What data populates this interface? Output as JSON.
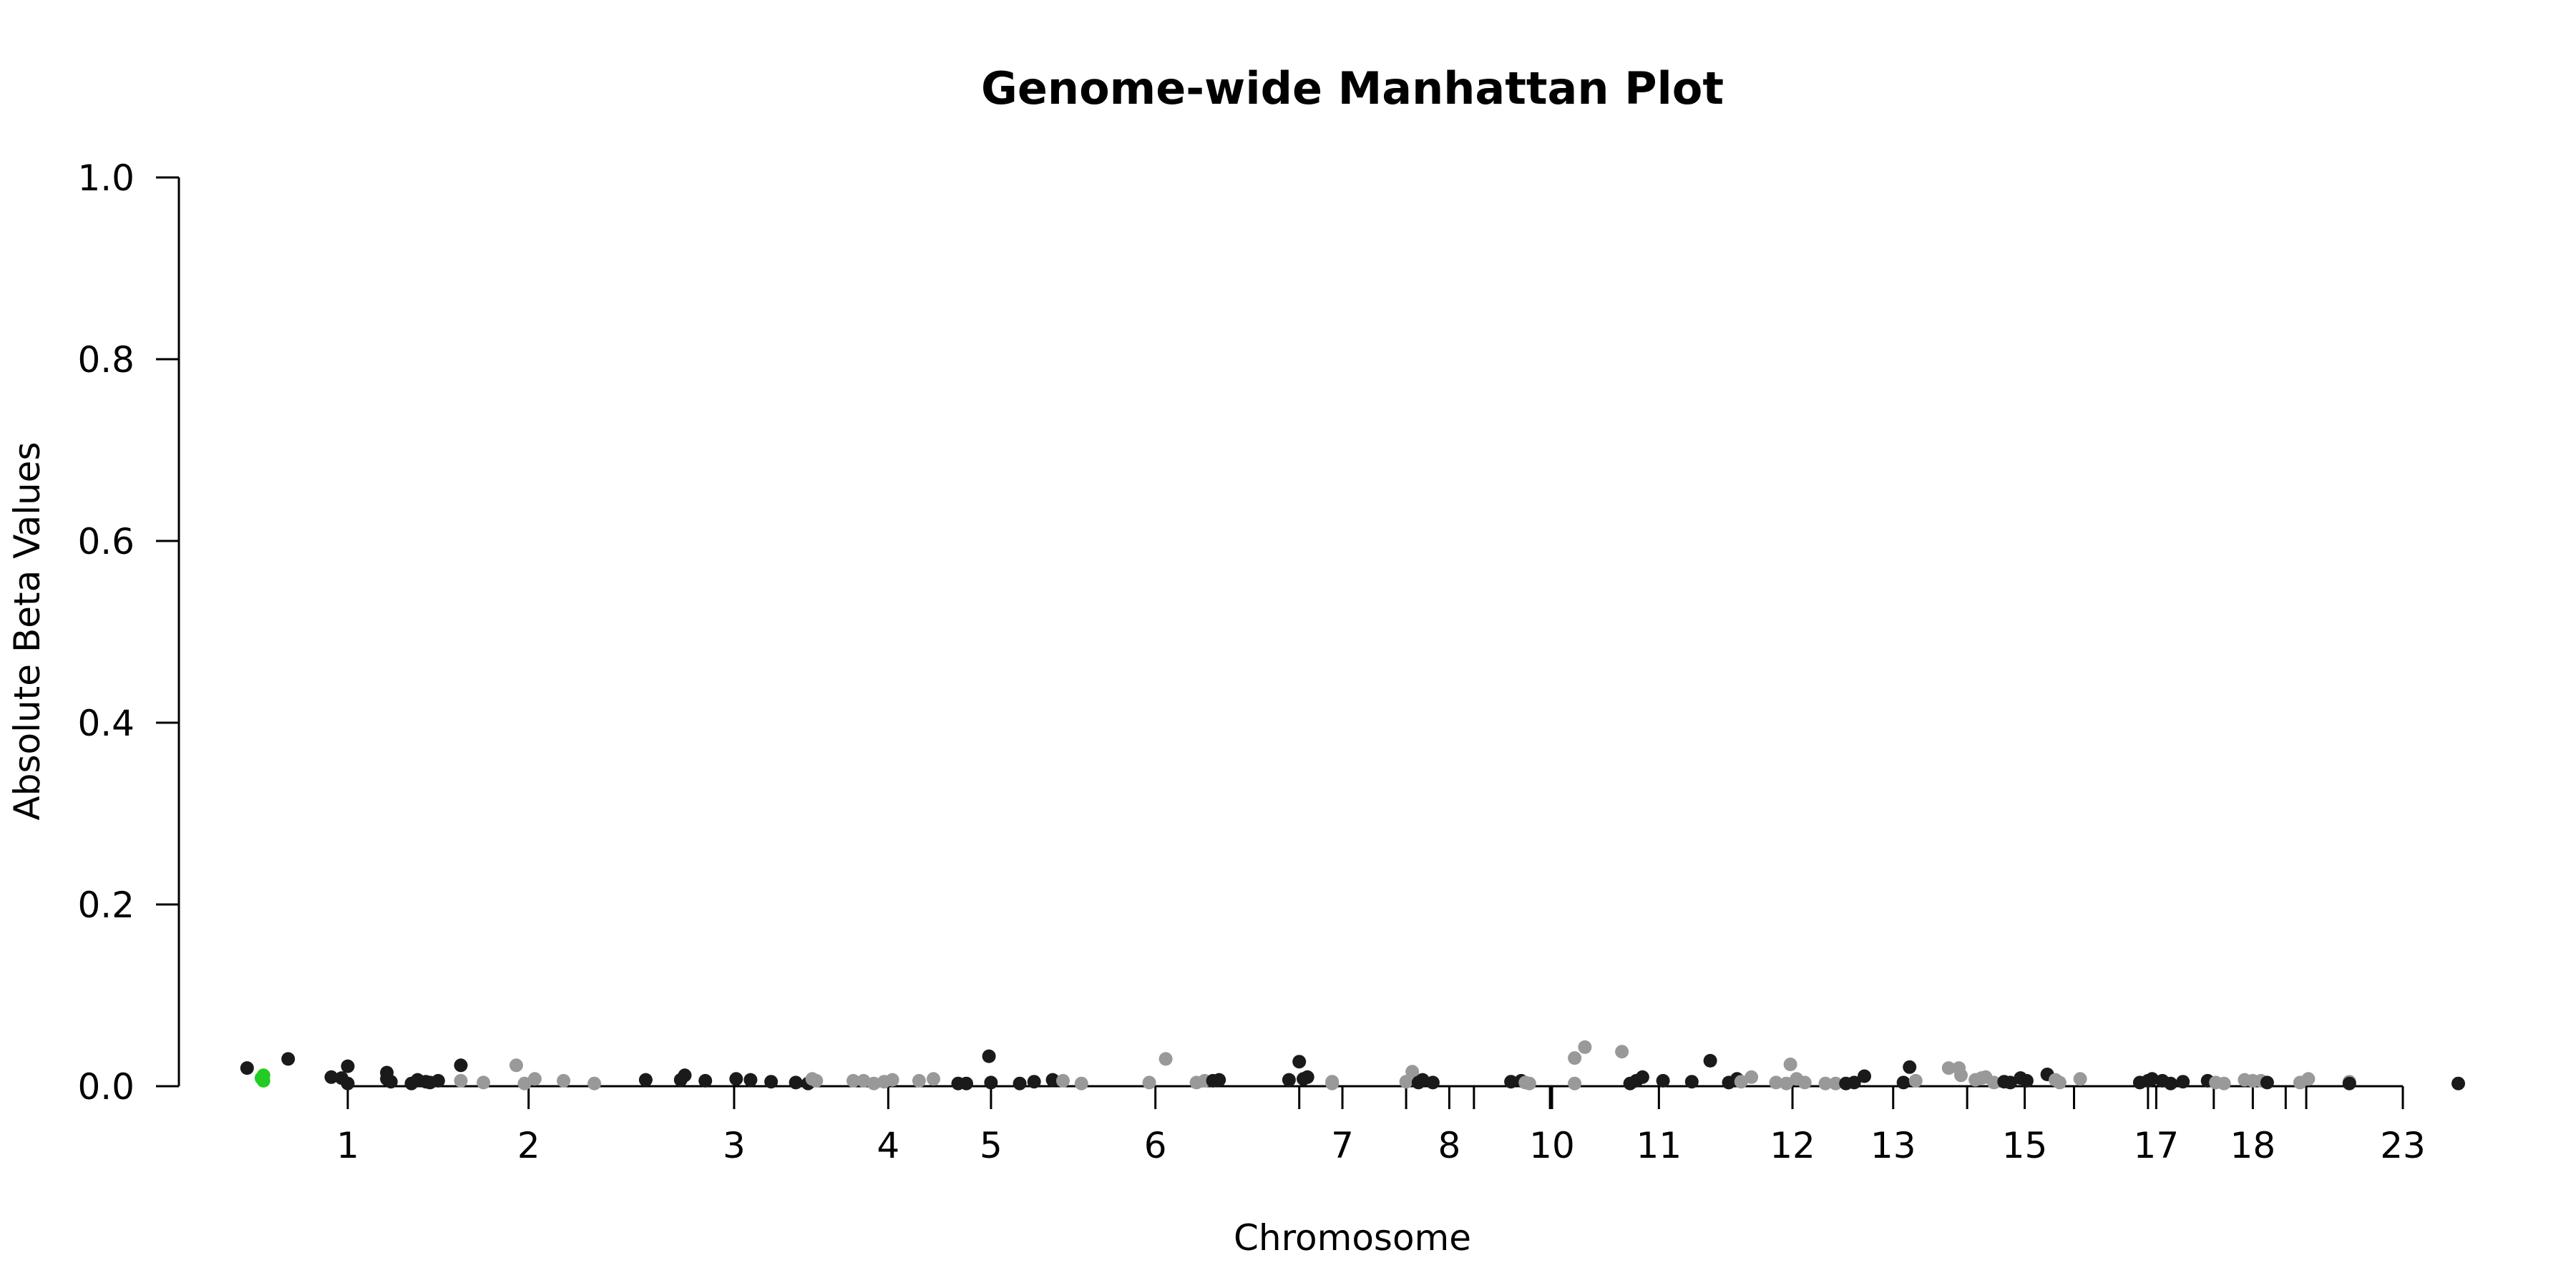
{
  "chart_data": {
    "type": "scatter",
    "title": "Genome-wide Manhattan Plot",
    "xlabel": "Chromosome",
    "ylabel": "Absolute Beta Values",
    "ylim": [
      0,
      1
    ],
    "yticks": [
      {
        "value": 0.0,
        "label": "0.0"
      },
      {
        "value": 0.2,
        "label": "0.2"
      },
      {
        "value": 0.4,
        "label": "0.4"
      },
      {
        "value": 0.6,
        "label": "0.6"
      },
      {
        "value": 0.8,
        "label": "0.8"
      },
      {
        "value": 1.0,
        "label": "1.0"
      }
    ],
    "xlim": [
      -0.06,
      1.0
    ],
    "xticks": [
      {
        "pos": 0.0,
        "label": "1"
      },
      {
        "pos": 0.088,
        "label": "2"
      },
      {
        "pos": 0.188,
        "label": "3"
      },
      {
        "pos": 0.263,
        "label": "4"
      },
      {
        "pos": 0.313,
        "label": "5"
      },
      {
        "pos": 0.393,
        "label": "6"
      },
      {
        "pos": 0.463,
        "label": ""
      },
      {
        "pos": 0.484,
        "label": "7"
      },
      {
        "pos": 0.515,
        "label": ""
      },
      {
        "pos": 0.536,
        "label": "8"
      },
      {
        "pos": 0.548,
        "label": ""
      },
      {
        "pos": 0.585,
        "label": ""
      },
      {
        "pos": 0.586,
        "label": "10"
      },
      {
        "pos": 0.638,
        "label": "11"
      },
      {
        "pos": 0.703,
        "label": "12"
      },
      {
        "pos": 0.752,
        "label": "13"
      },
      {
        "pos": 0.788,
        "label": ""
      },
      {
        "pos": 0.816,
        "label": "15"
      },
      {
        "pos": 0.84,
        "label": ""
      },
      {
        "pos": 0.876,
        "label": ""
      },
      {
        "pos": 0.88,
        "label": "17"
      },
      {
        "pos": 0.908,
        "label": ""
      },
      {
        "pos": 0.927,
        "label": "18"
      },
      {
        "pos": 0.943,
        "label": ""
      },
      {
        "pos": 0.953,
        "label": ""
      },
      {
        "pos": 1.0,
        "label": "23"
      }
    ],
    "grid": false,
    "colors": {
      "dark": "#1a1a1a",
      "light": "#999999",
      "highlight": "#22cc22"
    },
    "points": [
      {
        "x": -0.049,
        "y": 0.02,
        "c": "dark"
      },
      {
        "x": -0.029,
        "y": 0.03,
        "c": "dark"
      },
      {
        "x": -0.041,
        "y": 0.012,
        "c": "highlight"
      },
      {
        "x": -0.041,
        "y": 0.006,
        "c": "highlight"
      },
      {
        "x": -0.042,
        "y": 0.009,
        "c": "highlight"
      },
      {
        "x": -0.008,
        "y": 0.01,
        "c": "dark"
      },
      {
        "x": -0.003,
        "y": 0.009,
        "c": "dark"
      },
      {
        "x": 0.0,
        "y": 0.003,
        "c": "dark"
      },
      {
        "x": 0.0,
        "y": 0.022,
        "c": "dark"
      },
      {
        "x": 0.019,
        "y": 0.015,
        "c": "dark"
      },
      {
        "x": 0.019,
        "y": 0.008,
        "c": "dark"
      },
      {
        "x": 0.021,
        "y": 0.005,
        "c": "dark"
      },
      {
        "x": 0.031,
        "y": 0.003,
        "c": "dark"
      },
      {
        "x": 0.034,
        "y": 0.007,
        "c": "dark"
      },
      {
        "x": 0.038,
        "y": 0.005,
        "c": "dark"
      },
      {
        "x": 0.04,
        "y": 0.004,
        "c": "dark"
      },
      {
        "x": 0.044,
        "y": 0.006,
        "c": "dark"
      },
      {
        "x": 0.055,
        "y": 0.023,
        "c": "dark"
      },
      {
        "x": 0.055,
        "y": 0.006,
        "c": "light"
      },
      {
        "x": 0.066,
        "y": 0.004,
        "c": "light"
      },
      {
        "x": 0.082,
        "y": 0.023,
        "c": "light"
      },
      {
        "x": 0.086,
        "y": 0.003,
        "c": "light"
      },
      {
        "x": 0.091,
        "y": 0.008,
        "c": "light"
      },
      {
        "x": 0.105,
        "y": 0.006,
        "c": "light"
      },
      {
        "x": 0.12,
        "y": 0.003,
        "c": "light"
      },
      {
        "x": 0.145,
        "y": 0.007,
        "c": "dark"
      },
      {
        "x": 0.162,
        "y": 0.007,
        "c": "dark"
      },
      {
        "x": 0.164,
        "y": 0.012,
        "c": "dark"
      },
      {
        "x": 0.174,
        "y": 0.006,
        "c": "dark"
      },
      {
        "x": 0.189,
        "y": 0.008,
        "c": "dark"
      },
      {
        "x": 0.196,
        "y": 0.007,
        "c": "dark"
      },
      {
        "x": 0.206,
        "y": 0.005,
        "c": "dark"
      },
      {
        "x": 0.218,
        "y": 0.004,
        "c": "dark"
      },
      {
        "x": 0.224,
        "y": 0.003,
        "c": "dark"
      },
      {
        "x": 0.226,
        "y": 0.008,
        "c": "light"
      },
      {
        "x": 0.228,
        "y": 0.006,
        "c": "light"
      },
      {
        "x": 0.246,
        "y": 0.006,
        "c": "light"
      },
      {
        "x": 0.251,
        "y": 0.006,
        "c": "light"
      },
      {
        "x": 0.256,
        "y": 0.003,
        "c": "light"
      },
      {
        "x": 0.261,
        "y": 0.005,
        "c": "light"
      },
      {
        "x": 0.265,
        "y": 0.007,
        "c": "light"
      },
      {
        "x": 0.278,
        "y": 0.006,
        "c": "light"
      },
      {
        "x": 0.285,
        "y": 0.008,
        "c": "light"
      },
      {
        "x": 0.297,
        "y": 0.003,
        "c": "dark"
      },
      {
        "x": 0.301,
        "y": 0.003,
        "c": "dark"
      },
      {
        "x": 0.312,
        "y": 0.033,
        "c": "dark"
      },
      {
        "x": 0.313,
        "y": 0.004,
        "c": "dark"
      },
      {
        "x": 0.327,
        "y": 0.003,
        "c": "dark"
      },
      {
        "x": 0.334,
        "y": 0.005,
        "c": "dark"
      },
      {
        "x": 0.343,
        "y": 0.007,
        "c": "dark"
      },
      {
        "x": 0.348,
        "y": 0.006,
        "c": "light"
      },
      {
        "x": 0.357,
        "y": 0.003,
        "c": "light"
      },
      {
        "x": 0.39,
        "y": 0.004,
        "c": "light"
      },
      {
        "x": 0.398,
        "y": 0.03,
        "c": "light"
      },
      {
        "x": 0.413,
        "y": 0.004,
        "c": "light"
      },
      {
        "x": 0.417,
        "y": 0.006,
        "c": "light"
      },
      {
        "x": 0.421,
        "y": 0.006,
        "c": "dark"
      },
      {
        "x": 0.424,
        "y": 0.007,
        "c": "dark"
      },
      {
        "x": 0.458,
        "y": 0.007,
        "c": "dark"
      },
      {
        "x": 0.463,
        "y": 0.027,
        "c": "dark"
      },
      {
        "x": 0.465,
        "y": 0.008,
        "c": "dark"
      },
      {
        "x": 0.467,
        "y": 0.01,
        "c": "dark"
      },
      {
        "x": 0.479,
        "y": 0.005,
        "c": "light"
      },
      {
        "x": 0.479,
        "y": 0.003,
        "c": "light"
      },
      {
        "x": 0.515,
        "y": 0.005,
        "c": "light"
      },
      {
        "x": 0.518,
        "y": 0.016,
        "c": "light"
      },
      {
        "x": 0.521,
        "y": 0.004,
        "c": "dark"
      },
      {
        "x": 0.523,
        "y": 0.007,
        "c": "dark"
      },
      {
        "x": 0.528,
        "y": 0.004,
        "c": "dark"
      },
      {
        "x": 0.566,
        "y": 0.005,
        "c": "dark"
      },
      {
        "x": 0.571,
        "y": 0.006,
        "c": "dark"
      },
      {
        "x": 0.573,
        "y": 0.004,
        "c": "light"
      },
      {
        "x": 0.575,
        "y": 0.003,
        "c": "light"
      },
      {
        "x": 0.597,
        "y": 0.031,
        "c": "light"
      },
      {
        "x": 0.602,
        "y": 0.043,
        "c": "light"
      },
      {
        "x": 0.597,
        "y": 0.003,
        "c": "light"
      },
      {
        "x": 0.62,
        "y": 0.038,
        "c": "light"
      },
      {
        "x": 0.624,
        "y": 0.003,
        "c": "dark"
      },
      {
        "x": 0.627,
        "y": 0.006,
        "c": "dark"
      },
      {
        "x": 0.63,
        "y": 0.01,
        "c": "dark"
      },
      {
        "x": 0.64,
        "y": 0.006,
        "c": "dark"
      },
      {
        "x": 0.654,
        "y": 0.005,
        "c": "dark"
      },
      {
        "x": 0.663,
        "y": 0.028,
        "c": "dark"
      },
      {
        "x": 0.672,
        "y": 0.004,
        "c": "dark"
      },
      {
        "x": 0.676,
        "y": 0.008,
        "c": "dark"
      },
      {
        "x": 0.678,
        "y": 0.005,
        "c": "light"
      },
      {
        "x": 0.683,
        "y": 0.01,
        "c": "light"
      },
      {
        "x": 0.695,
        "y": 0.004,
        "c": "light"
      },
      {
        "x": 0.7,
        "y": 0.003,
        "c": "light"
      },
      {
        "x": 0.702,
        "y": 0.024,
        "c": "light"
      },
      {
        "x": 0.705,
        "y": 0.008,
        "c": "light"
      },
      {
        "x": 0.709,
        "y": 0.004,
        "c": "light"
      },
      {
        "x": 0.719,
        "y": 0.003,
        "c": "light"
      },
      {
        "x": 0.724,
        "y": 0.003,
        "c": "light"
      },
      {
        "x": 0.729,
        "y": 0.003,
        "c": "dark"
      },
      {
        "x": 0.733,
        "y": 0.004,
        "c": "dark"
      },
      {
        "x": 0.738,
        "y": 0.011,
        "c": "dark"
      },
      {
        "x": 0.757,
        "y": 0.004,
        "c": "dark"
      },
      {
        "x": 0.76,
        "y": 0.021,
        "c": "dark"
      },
      {
        "x": 0.763,
        "y": 0.006,
        "c": "light"
      },
      {
        "x": 0.779,
        "y": 0.02,
        "c": "light"
      },
      {
        "x": 0.784,
        "y": 0.02,
        "c": "light"
      },
      {
        "x": 0.785,
        "y": 0.012,
        "c": "light"
      },
      {
        "x": 0.792,
        "y": 0.007,
        "c": "light"
      },
      {
        "x": 0.795,
        "y": 0.009,
        "c": "light"
      },
      {
        "x": 0.797,
        "y": 0.01,
        "c": "light"
      },
      {
        "x": 0.801,
        "y": 0.004,
        "c": "light"
      },
      {
        "x": 0.806,
        "y": 0.005,
        "c": "dark"
      },
      {
        "x": 0.809,
        "y": 0.004,
        "c": "dark"
      },
      {
        "x": 0.814,
        "y": 0.009,
        "c": "dark"
      },
      {
        "x": 0.817,
        "y": 0.006,
        "c": "dark"
      },
      {
        "x": 0.827,
        "y": 0.013,
        "c": "dark"
      },
      {
        "x": 0.831,
        "y": 0.007,
        "c": "light"
      },
      {
        "x": 0.833,
        "y": 0.004,
        "c": "light"
      },
      {
        "x": 0.843,
        "y": 0.008,
        "c": "light"
      },
      {
        "x": 0.872,
        "y": 0.004,
        "c": "dark"
      },
      {
        "x": 0.876,
        "y": 0.006,
        "c": "dark"
      },
      {
        "x": 0.878,
        "y": 0.008,
        "c": "dark"
      },
      {
        "x": 0.883,
        "y": 0.006,
        "c": "dark"
      },
      {
        "x": 0.887,
        "y": 0.003,
        "c": "dark"
      },
      {
        "x": 0.893,
        "y": 0.005,
        "c": "dark"
      },
      {
        "x": 0.905,
        "y": 0.006,
        "c": "dark"
      },
      {
        "x": 0.909,
        "y": 0.004,
        "c": "light"
      },
      {
        "x": 0.913,
        "y": 0.003,
        "c": "light"
      },
      {
        "x": 0.923,
        "y": 0.007,
        "c": "light"
      },
      {
        "x": 0.927,
        "y": 0.006,
        "c": "light"
      },
      {
        "x": 0.931,
        "y": 0.006,
        "c": "light"
      },
      {
        "x": 0.934,
        "y": 0.004,
        "c": "dark"
      },
      {
        "x": 0.95,
        "y": 0.004,
        "c": "light"
      },
      {
        "x": 0.954,
        "y": 0.008,
        "c": "light"
      },
      {
        "x": 0.974,
        "y": 0.005,
        "c": "light"
      },
      {
        "x": 0.974,
        "y": 0.003,
        "c": "dark"
      },
      {
        "x": 1.027,
        "y": 0.003,
        "c": "dark"
      }
    ]
  }
}
